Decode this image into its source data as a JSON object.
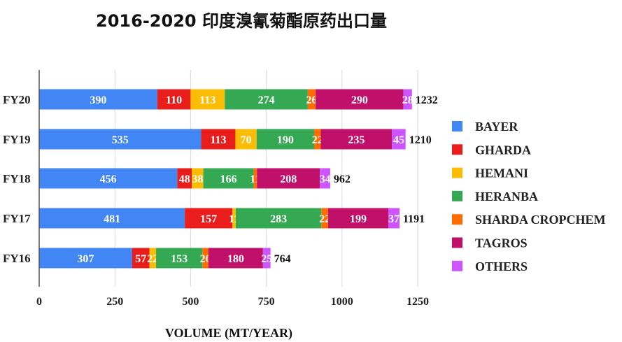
{
  "chart_data": {
    "type": "bar",
    "orientation": "horizontal",
    "stacked": true,
    "title": "2016-2020 印度溴氰菊酯原药出口量",
    "xlabel": "VOLUME (MT/YEAR)",
    "ylabel": "",
    "xlim": [
      0,
      1250
    ],
    "xticks": [
      "0",
      "250",
      "500",
      "750",
      "1000",
      "1250"
    ],
    "grid": true,
    "legend_position": "right",
    "categories": [
      "FY20",
      "FY19",
      "FY18",
      "FY17",
      "FY16"
    ],
    "totals": [
      1232,
      1210,
      962,
      1191,
      764
    ],
    "series": [
      {
        "name": "BAYER",
        "color": "#4285F4",
        "values": [
          390,
          535,
          456,
          481,
          307
        ]
      },
      {
        "name": "GHARDA",
        "color": "#EA1D1D",
        "values": [
          110,
          113,
          48,
          157,
          57
        ]
      },
      {
        "name": "HEMANI",
        "color": "#FBBC04",
        "values": [
          113,
          70,
          38,
          11,
          22
        ]
      },
      {
        "name": "HERANBA",
        "color": "#34A853",
        "values": [
          274,
          190,
          166,
          283,
          153
        ]
      },
      {
        "name": "SHARDA CROPCHEM",
        "color": "#FF6D01",
        "values": [
          26,
          22,
          11,
          22,
          20
        ]
      },
      {
        "name": "TAGROS",
        "color": "#C0106A",
        "values": [
          290,
          235,
          208,
          199,
          180
        ]
      },
      {
        "name": "OTHERS",
        "color": "#CC55FF",
        "values": [
          28,
          45,
          34,
          37,
          25
        ]
      }
    ]
  }
}
